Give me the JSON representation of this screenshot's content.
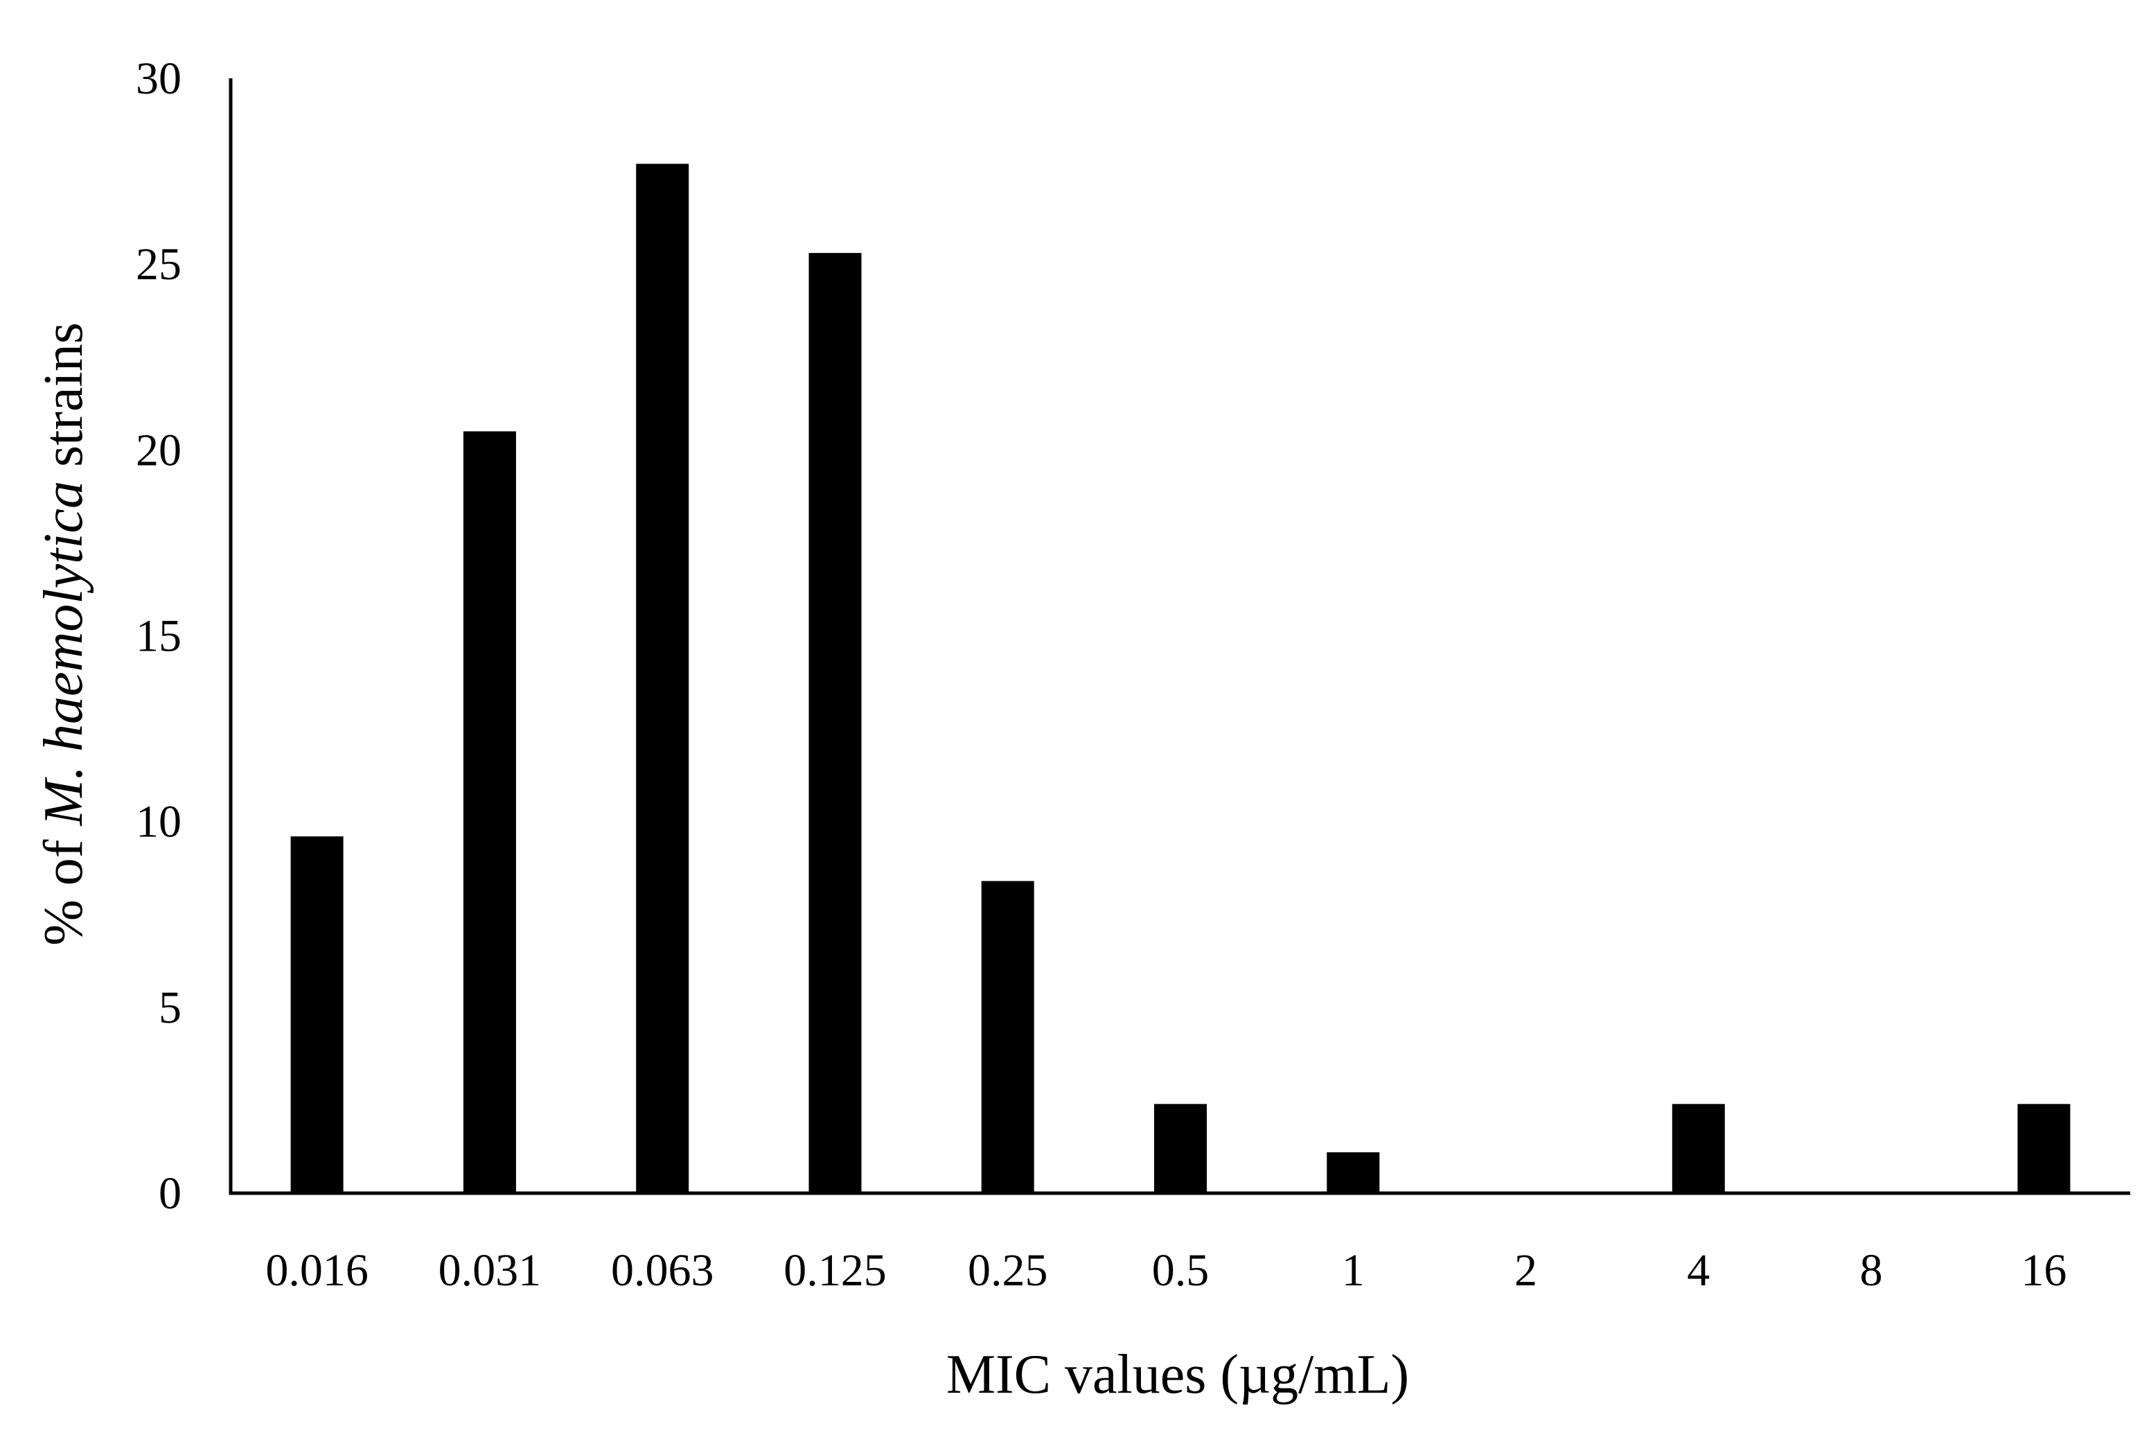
{
  "chart_data": {
    "type": "bar",
    "title": "",
    "categories": [
      "0.016",
      "0.031",
      "0.063",
      "0.125",
      "0.25",
      "0.5",
      "1",
      "2",
      "4",
      "8",
      "16"
    ],
    "series": [
      {
        "name": "% of M. haemolytica strains",
        "values": [
          9.6,
          20.5,
          27.7,
          25.3,
          8.4,
          2.4,
          1.1,
          0,
          2.4,
          0,
          2.4
        ]
      }
    ],
    "xlabel": "MIC values (µg/mL)",
    "ylabel": {
      "prefix": "% of ",
      "italic": "M. haemolytica",
      "suffix": " strains"
    },
    "ylim": [
      0,
      30
    ],
    "yticks": [
      "0",
      "5",
      "10",
      "15",
      "20",
      "25",
      "30"
    ],
    "ytick_values": [
      0,
      5,
      10,
      15,
      20,
      25,
      30
    ],
    "grid": false,
    "legend": "none",
    "colors": {
      "bar": "#000000",
      "axis": "#000000",
      "background": "#ffffff"
    }
  }
}
